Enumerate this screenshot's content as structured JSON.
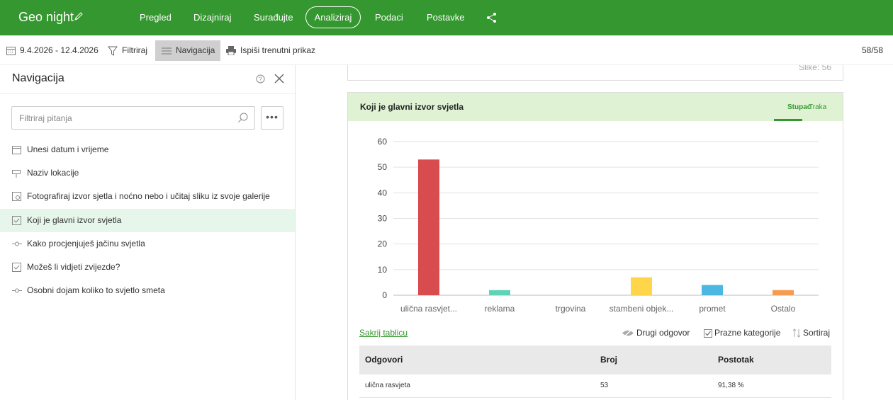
{
  "app": {
    "title": "Geo night",
    "nav": [
      "Pregled",
      "Dizajniraj",
      "Surađujte",
      "Analiziraj",
      "Podaci",
      "Postavke"
    ],
    "active_tab": "Analiziraj"
  },
  "toolbar": {
    "date_range": "9.4.2026 - 12.4.2026",
    "filter_label": "Filtriraj",
    "navigation_label": "Navigacija",
    "print_label": "Ispiši trenutni prikaz",
    "page_count": "58/58"
  },
  "nav_panel": {
    "title": "Navigacija",
    "search_placeholder": "Filtriraj pitanja",
    "more_label": "•••",
    "items": [
      {
        "label": "Unesi datum i vrijeme",
        "icon": "calendar-icon"
      },
      {
        "label": "Naziv lokacije",
        "icon": "signpost-icon"
      },
      {
        "label": "Fotografiraj izvor sjetla i noćno nebo i učitaj sliku iz svoje galerije",
        "icon": "image-upload-icon"
      },
      {
        "label": "Koji je glavni izvor svjetla",
        "icon": "checkbox-icon",
        "selected": true
      },
      {
        "label": "Kako procjenjuješ jačinu svjetla",
        "icon": "slider-icon"
      },
      {
        "label": "Možeš li vidjeti zvijezde?",
        "icon": "checkbox-icon"
      },
      {
        "label": "Osobni dojam koliko to svjetlo smeta",
        "icon": "slider-icon"
      }
    ]
  },
  "previous_card": {
    "images_label": "Slike: 56"
  },
  "question": {
    "title": "Koji je glavni izvor svjetla",
    "tab_column": "Stupac",
    "tab_bar": "Traka",
    "hide_table": "Sakrij tablicu",
    "other_answer": "Drugi odgovor",
    "empty_categories": "Prazne kategorije",
    "sort": "Sortiraj"
  },
  "chart_data": {
    "type": "bar",
    "categories": [
      "ulična rasvjet...",
      "reklama",
      "trgovina",
      "stambeni objek...",
      "promet",
      "Ostalo"
    ],
    "values": [
      53,
      2,
      0,
      7,
      4,
      2
    ],
    "colors": [
      "#d84b4f",
      "#5fd3b6",
      "#9a9a9a",
      "#ffd54a",
      "#4ab8e1",
      "#f49d52"
    ],
    "yticks": [
      0,
      10,
      20,
      30,
      40,
      50,
      60
    ],
    "ylim": [
      0,
      60
    ],
    "grid": true
  },
  "table": {
    "headers": [
      "Odgovori",
      "Broj",
      "Postotak"
    ],
    "rows": [
      [
        "ulična rasvjeta",
        "53",
        "91,38 %"
      ]
    ]
  }
}
